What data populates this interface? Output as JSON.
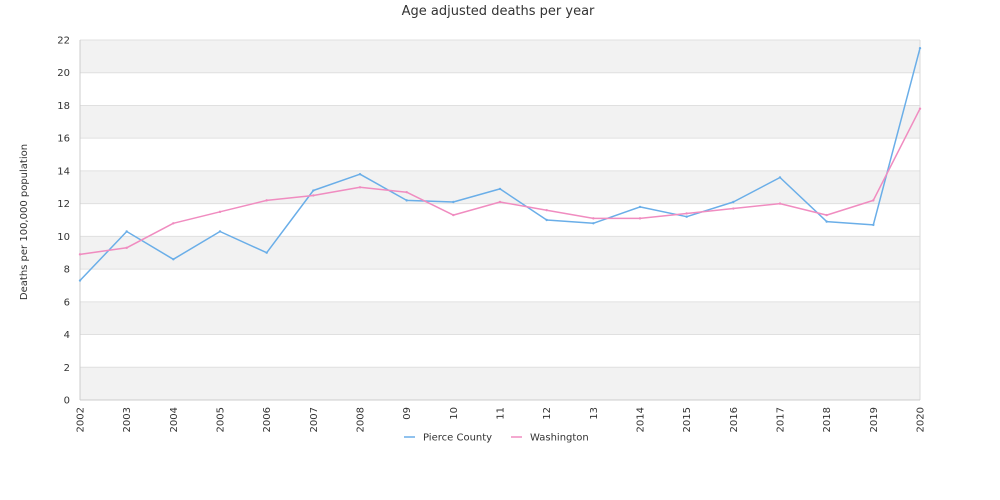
{
  "chart_data": {
    "type": "line",
    "title": "Age adjusted deaths per year",
    "xlabel": "",
    "ylabel": "Deaths per 100,000 population",
    "ylim": [
      0,
      22
    ],
    "yticks": [
      0,
      2,
      4,
      6,
      8,
      10,
      12,
      14,
      16,
      18,
      20,
      22
    ],
    "categories": [
      "2002",
      "2003",
      "2004",
      "2005",
      "2006",
      "2007",
      "2008",
      "09",
      "10",
      "11",
      "12",
      "13",
      "2014",
      "2015",
      "2016",
      "2017",
      "2018",
      "2019",
      "2020"
    ],
    "grid": "horizontal alternating bands",
    "legend": "bottom-center",
    "series": [
      {
        "name": "Pierce County",
        "color": "#6aaee8",
        "values": [
          7.3,
          10.3,
          8.6,
          10.3,
          9.0,
          12.8,
          13.8,
          12.2,
          12.1,
          12.9,
          11.0,
          10.8,
          11.8,
          11.2,
          12.1,
          13.6,
          10.9,
          10.7,
          21.5
        ]
      },
      {
        "name": "Washington",
        "color": "#f08cc0",
        "values": [
          8.9,
          9.3,
          10.8,
          11.5,
          12.2,
          12.5,
          13.0,
          12.7,
          11.3,
          12.1,
          11.6,
          11.1,
          11.1,
          11.4,
          11.7,
          12.0,
          11.3,
          12.2,
          17.8
        ]
      }
    ]
  }
}
